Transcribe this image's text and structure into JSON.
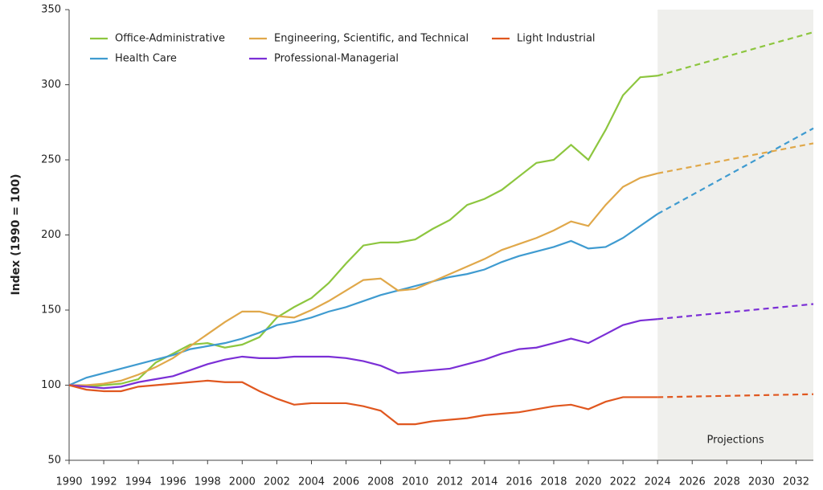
{
  "chart_data": {
    "type": "line",
    "y_label": "Index (1990 = 100)",
    "annotation": "Projections",
    "projection_start": 2024,
    "x": [
      1990,
      1991,
      1992,
      1993,
      1994,
      1995,
      1996,
      1997,
      1998,
      1999,
      2000,
      2001,
      2002,
      2003,
      2004,
      2005,
      2006,
      2007,
      2008,
      2009,
      2010,
      2011,
      2012,
      2013,
      2014,
      2015,
      2016,
      2017,
      2018,
      2019,
      2020,
      2021,
      2022,
      2023,
      2024,
      2033
    ],
    "series": [
      {
        "name": "Office-Administrative",
        "color": "#8dc63f",
        "values": [
          100,
          99,
          100,
          101,
          104,
          115,
          121,
          127,
          128,
          125,
          127,
          132,
          145,
          152,
          158,
          168,
          181,
          193,
          195,
          195,
          197,
          204,
          210,
          220,
          224,
          230,
          239,
          248,
          250,
          260,
          250,
          270,
          293,
          305,
          306,
          335
        ]
      },
      {
        "name": "Health Care",
        "color": "#3f9bd0",
        "values": [
          100,
          105,
          108,
          111,
          114,
          117,
          120,
          124,
          126,
          128,
          131,
          135,
          140,
          142,
          145,
          149,
          152,
          156,
          160,
          163,
          166,
          169,
          172,
          174,
          177,
          182,
          186,
          189,
          192,
          196,
          191,
          192,
          198,
          206,
          214,
          271
        ]
      },
      {
        "name": "Engineering, Scientific, and Technical",
        "color": "#e0a84a",
        "values": [
          100,
          100,
          101,
          103,
          107,
          112,
          118,
          126,
          134,
          142,
          149,
          149,
          146,
          145,
          150,
          156,
          163,
          170,
          171,
          163,
          164,
          169,
          174,
          179,
          184,
          190,
          194,
          198,
          203,
          209,
          206,
          220,
          232,
          238,
          241,
          261
        ]
      },
      {
        "name": "Professional-Managerial",
        "color": "#7b2fd6",
        "values": [
          100,
          99,
          98,
          99,
          102,
          104,
          106,
          110,
          114,
          117,
          119,
          118,
          118,
          119,
          119,
          119,
          118,
          116,
          113,
          108,
          109,
          110,
          111,
          114,
          117,
          121,
          124,
          125,
          128,
          131,
          128,
          134,
          140,
          143,
          144,
          154
        ]
      },
      {
        "name": "Light Industrial",
        "color": "#e0571f",
        "values": [
          100,
          97,
          96,
          96,
          99,
          100,
          101,
          102,
          103,
          102,
          102,
          96,
          91,
          87,
          88,
          88,
          88,
          86,
          83,
          74,
          74,
          76,
          77,
          78,
          80,
          81,
          82,
          84,
          86,
          87,
          84,
          89,
          92,
          92,
          92,
          94
        ]
      }
    ],
    "xlim": [
      1990,
      2033
    ],
    "xticks": [
      1990,
      1992,
      1994,
      1996,
      1998,
      2000,
      2002,
      2004,
      2006,
      2008,
      2010,
      2012,
      2014,
      2016,
      2018,
      2020,
      2022,
      2024,
      2026,
      2028,
      2030,
      2032
    ],
    "ylim": [
      50,
      350
    ],
    "yticks": [
      50,
      100,
      150,
      200,
      250,
      300,
      350
    ],
    "grid": false,
    "legend": "top-left"
  }
}
